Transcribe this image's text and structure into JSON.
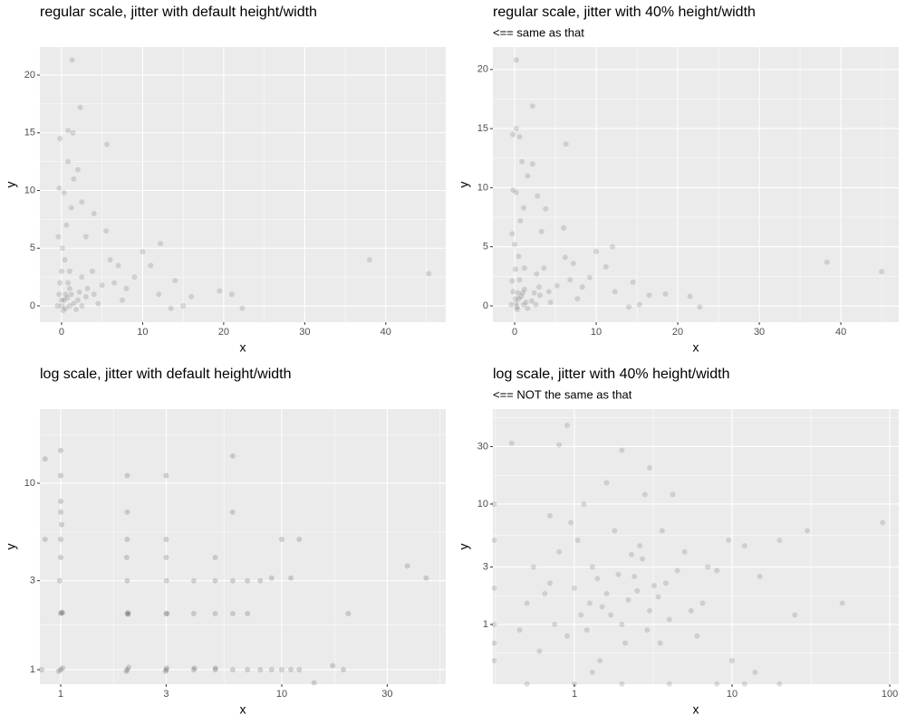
{
  "chart_data": [
    {
      "type": "scatter",
      "title": "regular scale, jitter with default height/width",
      "xlabel": "x",
      "ylabel": "y",
      "xscale": "linear",
      "yscale": "linear",
      "color": "#000000",
      "alpha": 0.12,
      "grid": true,
      "xlim": [
        -2.68,
        47.4
      ],
      "ylim": [
        -1.41,
        22.43
      ],
      "xticks": [
        0,
        10,
        20,
        30,
        40
      ],
      "yticks": [
        0,
        5,
        10,
        15,
        20
      ],
      "x": [
        0,
        0.3,
        -0.3,
        0.5,
        1,
        1.2,
        0.8,
        0,
        -0.2,
        0.4,
        1,
        2,
        2.2,
        1.8,
        3,
        3.2,
        2.5,
        4,
        4.5,
        5,
        3.8,
        0.1,
        -0.4,
        0.6,
        1.2,
        0.3,
        -0.3,
        1.5,
        2,
        0.8,
        -0.2,
        0.8,
        1.4,
        2.3,
        1.3,
        5.6,
        4,
        2.5,
        3,
        5.5,
        6,
        7,
        6.5,
        8,
        7.5,
        9,
        10,
        11,
        12.2,
        12,
        13.5,
        14,
        15,
        16,
        19.5,
        21,
        22.3,
        38,
        45.3,
        0,
        0.5,
        1,
        -0.5,
        0.2,
        1.5,
        2.5,
        0.7
      ],
      "y": [
        0,
        0.5,
        1,
        -0.2,
        0,
        1,
        2,
        3,
        2,
        4,
        3,
        0.5,
        1.2,
        -0.3,
        0.8,
        1.5,
        2.5,
        1,
        0.2,
        1.8,
        3,
        5,
        6,
        7,
        8.5,
        9.8,
        10.2,
        11,
        11.8,
        12.5,
        14.5,
        15.2,
        15,
        17.2,
        21.3,
        14,
        8,
        9,
        6,
        6.5,
        4,
        3.5,
        2,
        1.5,
        0.5,
        2.5,
        4.7,
        3.5,
        5.4,
        1,
        -0.2,
        2.2,
        0,
        0.8,
        1.3,
        1,
        -0.2,
        4,
        2.8,
        0.5,
        1,
        1.5,
        0,
        -0.4,
        0.2,
        0,
        0.7
      ]
    },
    {
      "type": "scatter",
      "title": "regular scale, jitter with 40% height/width",
      "subtitle": "<== same as that",
      "xlabel": "x",
      "ylabel": "y",
      "xscale": "linear",
      "yscale": "linear",
      "color": "#000000",
      "alpha": 0.12,
      "grid": true,
      "xlim": [
        -2.67,
        47.1
      ],
      "ylim": [
        -1.38,
        21.9
      ],
      "xticks": [
        0,
        10,
        20,
        30,
        40
      ],
      "yticks": [
        0,
        5,
        10,
        15,
        20
      ],
      "x": [
        0.2,
        0.5,
        -0.2,
        0.3,
        1.1,
        1,
        0.6,
        0.1,
        -0.3,
        0.5,
        1.2,
        2.1,
        2.4,
        1.6,
        3.1,
        3,
        2.7,
        4.2,
        4.4,
        5.2,
        3.6,
        0,
        -0.3,
        0.7,
        1.1,
        0.2,
        -0.2,
        1.6,
        2.2,
        0.9,
        -0.2,
        0.2,
        0.6,
        2.2,
        0.2,
        6.3,
        3.8,
        2.8,
        3.3,
        6,
        6.2,
        7.2,
        6.8,
        8.3,
        7.7,
        9.2,
        10,
        11.2,
        12,
        12.3,
        14,
        14.5,
        15.3,
        16.5,
        18.5,
        21.5,
        22.7,
        38.3,
        45,
        0.1,
        0.4,
        1.2,
        -0.4,
        0.3,
        1.4,
        2.6,
        0.8
      ],
      "y": [
        0.2,
        0.6,
        1.2,
        -0.1,
        0.1,
        1.1,
        2.2,
        3.1,
        2.1,
        4.2,
        3.2,
        0.4,
        1.1,
        -0.2,
        0.9,
        1.6,
        2.7,
        1.2,
        0.3,
        1.7,
        3.2,
        5.2,
        6.1,
        7.2,
        8.3,
        9.6,
        9.8,
        11,
        12,
        12.2,
        14.5,
        15,
        14.3,
        16.9,
        20.8,
        13.7,
        8.2,
        9.3,
        6.3,
        6.6,
        4.1,
        3.6,
        2.2,
        1.6,
        0.6,
        2.4,
        4.6,
        3.3,
        5,
        1.2,
        -0.1,
        2,
        0.1,
        0.9,
        1,
        0.8,
        -0.1,
        3.7,
        2.9,
        0.6,
        1.1,
        1.4,
        0.1,
        -0.3,
        0.3,
        0.1,
        0.8
      ]
    },
    {
      "type": "scatter",
      "title": "log scale, jitter with default height/width",
      "xlabel": "x",
      "ylabel": "y",
      "xscale": "log",
      "yscale": "log",
      "color": "#000000",
      "alpha": 0.15,
      "grid": true,
      "xlim": [
        0.805,
        55.2
      ],
      "ylim": [
        0.836,
        25.0
      ],
      "xticks": [
        1,
        3,
        10,
        30
      ],
      "yticks": [
        1,
        3,
        10
      ],
      "x": [
        1,
        1.02,
        0.98,
        1,
        1.01,
        0.99,
        1,
        1,
        1.01,
        1,
        1,
        1,
        2,
        2.03,
        1.98,
        2,
        2.02,
        2,
        1.99,
        2,
        2,
        2,
        3,
        3.02,
        2.98,
        3,
        3.01,
        3,
        3,
        3,
        4,
        4.03,
        4,
        4,
        5,
        5.02,
        5,
        5,
        5,
        6,
        6,
        6,
        6,
        6,
        7,
        7,
        7,
        8,
        8,
        9,
        9,
        10,
        10,
        11,
        11,
        12,
        12,
        14,
        17,
        19,
        20,
        37,
        45,
        0.85,
        0.85,
        0.82,
        1.02,
        2.02,
        3.03,
        1
      ],
      "y": [
        1,
        1.02,
        0.98,
        2,
        2.03,
        3,
        4,
        5,
        6,
        7,
        8,
        11,
        1,
        1.03,
        0.98,
        2,
        2.02,
        3,
        4,
        5,
        7,
        11,
        1,
        1.02,
        0.98,
        2,
        3,
        4,
        5,
        11,
        1,
        1.02,
        2,
        3,
        1,
        1.02,
        2,
        3,
        4,
        1,
        2,
        3,
        7,
        14,
        1,
        2,
        3,
        1,
        3,
        1,
        3.1,
        1,
        5,
        1,
        3.1,
        1,
        5,
        0.85,
        1.05,
        1,
        2,
        3.6,
        3.1,
        13.5,
        5,
        1,
        2.02,
        1.98,
        2,
        15
      ]
    },
    {
      "type": "scatter",
      "title": "log scale, jitter with 40% height/width",
      "subtitle": "<== NOT the same as that",
      "xlabel": "x",
      "ylabel": "y",
      "xscale": "log",
      "yscale": "log",
      "color": "#000000",
      "alpha": 0.12,
      "grid": true,
      "xlim": [
        0.304,
        114
      ],
      "ylim": [
        0.319,
        61.5
      ],
      "xticks": [
        1,
        10,
        100
      ],
      "yticks": [
        1,
        3,
        10,
        30
      ],
      "x": [
        0.5,
        0.7,
        0.9,
        1.1,
        1.3,
        1.6,
        2,
        2.4,
        3,
        3.5,
        0.6,
        0.8,
        1,
        1.2,
        1.5,
        1.8,
        2.2,
        2.7,
        3.2,
        4,
        0.55,
        0.75,
        1.05,
        1.4,
        1.7,
        2.1,
        2.6,
        3.4,
        4.5,
        5.5,
        0.65,
        0.95,
        1.25,
        1.9,
        2.3,
        2.9,
        3.8,
        5,
        6.5,
        8,
        0.45,
        1.15,
        1.45,
        2.5,
        3.6,
        7,
        9.5,
        12,
        15,
        20,
        30,
        50,
        90,
        0.9,
        0.8,
        2,
        3,
        0.4,
        1.6,
        4.2,
        0.31,
        0.31,
        0.31,
        0.31,
        0.31,
        0.31,
        0.5,
        1,
        2,
        4,
        8,
        12,
        20,
        0.7,
        1.3,
        2.8,
        6,
        10,
        14,
        25
      ],
      "y": [
        1.5,
        2.2,
        0.8,
        1.2,
        3,
        1.8,
        1,
        2.5,
        1.3,
        0.7,
        0.6,
        4,
        2,
        0.9,
        1.4,
        6,
        1.6,
        3.5,
        2.1,
        1.1,
        3,
        1,
        5,
        2.4,
        1.2,
        0.7,
        4.5,
        1.7,
        2.8,
        1.3,
        1.8,
        7,
        1.5,
        2.6,
        3.8,
        0.9,
        2.2,
        4,
        1.5,
        2.8,
        0.9,
        10,
        0.5,
        1.9,
        6,
        3,
        5,
        4.5,
        2.5,
        5,
        6,
        1.5,
        7,
        45,
        31,
        28,
        20,
        32,
        15,
        12,
        0.5,
        1,
        2,
        5,
        10,
        0.7,
        0.32,
        0.32,
        0.32,
        0.32,
        0.32,
        0.32,
        0.32,
        8,
        0.4,
        12,
        0.8,
        0.5,
        0.4,
        1.2
      ]
    }
  ]
}
